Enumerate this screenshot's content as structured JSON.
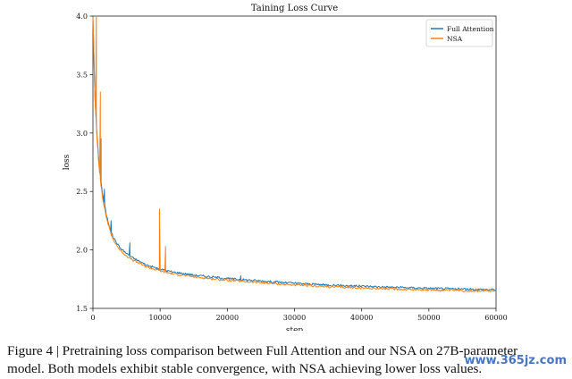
{
  "chart_data": {
    "type": "line",
    "title": "Taining Loss Curve",
    "xlabel": "step",
    "ylabel": "loss",
    "xlim": [
      0,
      60000
    ],
    "ylim": [
      1.5,
      4.0
    ],
    "xticks": [
      0,
      10000,
      20000,
      30000,
      40000,
      50000,
      60000
    ],
    "yticks": [
      1.5,
      2.0,
      2.5,
      3.0,
      3.5,
      4.0
    ],
    "grid": false,
    "legend_position": "top-right",
    "series": [
      {
        "name": "Full Attention",
        "color": "#1f77b4",
        "x": [
          0,
          300,
          600,
          900,
          1200,
          1500,
          2000,
          2500,
          3000,
          4000,
          5000,
          6000,
          8000,
          10000,
          12000,
          15000,
          20000,
          25000,
          30000,
          35000,
          40000,
          45000,
          50000,
          55000,
          60000
        ],
        "y": [
          4.0,
          3.3,
          2.98,
          2.75,
          2.58,
          2.45,
          2.3,
          2.19,
          2.11,
          2.02,
          1.97,
          1.93,
          1.87,
          1.835,
          1.81,
          1.785,
          1.755,
          1.735,
          1.715,
          1.7,
          1.69,
          1.68,
          1.672,
          1.665,
          1.66
        ],
        "spikes": [
          [
            1200,
            2.95
          ],
          [
            1700,
            2.52
          ],
          [
            2700,
            2.25
          ],
          [
            5500,
            2.06
          ],
          [
            22000,
            1.78
          ]
        ]
      },
      {
        "name": "NSA",
        "color": "#ff7f0e",
        "x": [
          0,
          300,
          600,
          900,
          1200,
          1500,
          2000,
          2500,
          3000,
          4000,
          5000,
          6000,
          8000,
          10000,
          12000,
          15000,
          20000,
          25000,
          30000,
          35000,
          40000,
          45000,
          50000,
          55000,
          60000
        ],
        "y": [
          4.0,
          3.28,
          2.96,
          2.72,
          2.55,
          2.42,
          2.28,
          2.17,
          2.09,
          2.0,
          1.95,
          1.91,
          1.855,
          1.82,
          1.795,
          1.77,
          1.74,
          1.72,
          1.7,
          1.685,
          1.675,
          1.665,
          1.658,
          1.652,
          1.648
        ],
        "spikes": [
          [
            500,
            4.0
          ],
          [
            1100,
            3.35
          ],
          [
            9900,
            2.35
          ],
          [
            10800,
            2.03
          ]
        ]
      }
    ]
  },
  "caption": {
    "line1": "Figure 4 | Pretraining loss comparison between Full Attention and our NSA on 27B-parameter",
    "line2": "model. Both models exhibit stable convergence, with NSA achieving lower loss values."
  },
  "watermark": "www.365jz.com"
}
